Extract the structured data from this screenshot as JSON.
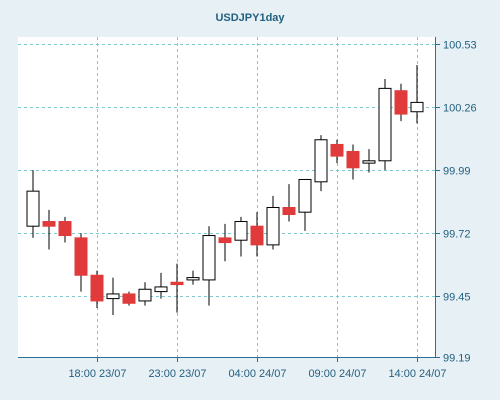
{
  "chart_data": {
    "type": "candlestick",
    "title": "USDJPY1day",
    "xlabel": "",
    "ylabel": "",
    "ylim": [
      99.19,
      100.53
    ],
    "y_ticks": [
      "100.53",
      "100.26",
      "99.99",
      "99.72",
      "99.45",
      "99.19"
    ],
    "x_ticks": [
      "18:00 23/07",
      "23:00 23/07",
      "04:00 24/07",
      "09:00 24/07",
      "14:00 24/07"
    ],
    "x_tick_candle_index": [
      4,
      9,
      14,
      19,
      24
    ],
    "grid": true,
    "colors": {
      "up": "#ffffff",
      "down": "#e03a3a",
      "wick": "#000000",
      "background": "#ffffff"
    },
    "candles": [
      {
        "open": 99.75,
        "high": 99.99,
        "low": 99.7,
        "close": 99.9
      },
      {
        "open": 99.77,
        "high": 99.82,
        "low": 99.65,
        "close": 99.75
      },
      {
        "open": 99.77,
        "high": 99.79,
        "low": 99.68,
        "close": 99.71
      },
      {
        "open": 99.7,
        "high": 99.72,
        "low": 99.47,
        "close": 99.54
      },
      {
        "open": 99.54,
        "high": 99.56,
        "low": 99.4,
        "close": 99.43
      },
      {
        "open": 99.44,
        "high": 99.53,
        "low": 99.37,
        "close": 99.46
      },
      {
        "open": 99.46,
        "high": 99.47,
        "low": 99.41,
        "close": 99.42
      },
      {
        "open": 99.43,
        "high": 99.51,
        "low": 99.41,
        "close": 99.48
      },
      {
        "open": 99.47,
        "high": 99.55,
        "low": 99.44,
        "close": 99.49
      },
      {
        "open": 99.51,
        "high": 99.59,
        "low": 99.38,
        "close": 99.5
      },
      {
        "open": 99.52,
        "high": 99.56,
        "low": 99.5,
        "close": 99.53
      },
      {
        "open": 99.52,
        "high": 99.75,
        "low": 99.41,
        "close": 99.71
      },
      {
        "open": 99.7,
        "high": 99.76,
        "low": 99.6,
        "close": 99.68
      },
      {
        "open": 99.69,
        "high": 99.79,
        "low": 99.62,
        "close": 99.77
      },
      {
        "open": 99.75,
        "high": 99.81,
        "low": 99.62,
        "close": 99.67
      },
      {
        "open": 99.67,
        "high": 99.88,
        "low": 99.65,
        "close": 99.83
      },
      {
        "open": 99.83,
        "high": 99.93,
        "low": 99.77,
        "close": 99.8
      },
      {
        "open": 99.81,
        "high": 99.95,
        "low": 99.73,
        "close": 99.95
      },
      {
        "open": 99.94,
        "high": 100.14,
        "low": 99.9,
        "close": 100.12
      },
      {
        "open": 100.1,
        "high": 100.12,
        "low": 100.02,
        "close": 100.05
      },
      {
        "open": 100.07,
        "high": 100.1,
        "low": 99.95,
        "close": 100.0
      },
      {
        "open": 100.02,
        "high": 100.08,
        "low": 99.98,
        "close": 100.03
      },
      {
        "open": 100.03,
        "high": 100.38,
        "low": 99.99,
        "close": 100.34
      },
      {
        "open": 100.33,
        "high": 100.36,
        "low": 100.2,
        "close": 100.23
      },
      {
        "open": 100.24,
        "high": 100.44,
        "low": 100.19,
        "close": 100.28
      }
    ]
  }
}
